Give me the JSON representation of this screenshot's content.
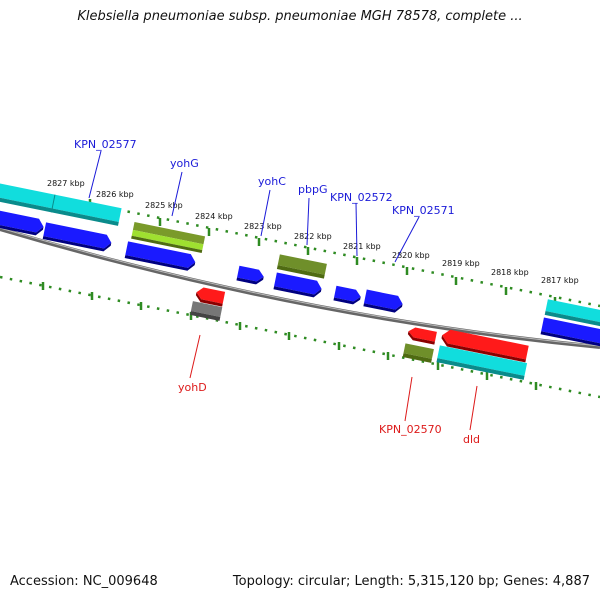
{
  "title": "Klebsiella pneumoniae subsp. pneumoniae MGH 78578, complete ...",
  "footer": {
    "accession": "Accession: NC_009648",
    "stats": "Topology: circular; Length: 5,315,120 bp; Genes: 4,887"
  },
  "colors": {
    "cds_blue": "#1a1aff",
    "cds_red": "#ff1a1a",
    "rrna_cyan": "#11dddd",
    "olive": "#7a9a2a",
    "lime": "#9fe030",
    "gray": "#777777",
    "tick_green": "#2e8b22",
    "label_blue": "#1a1ad8",
    "label_red": "#dd1a1a"
  },
  "ticks": [
    "2827 kbp",
    "2826 kbp",
    "2825 kbp",
    "2824 kbp",
    "2823 kbp",
    "2822 kbp",
    "2821 kbp",
    "2820 kbp",
    "2819 kbp",
    "2818 kbp",
    "2817 kbp"
  ],
  "forward_genes": [
    "KPN_02577",
    "yohG",
    "yohC",
    "pbpG",
    "KPN_02572",
    "KPN_02571"
  ],
  "reverse_genes": [
    "yohD",
    "KPN_02570",
    "dld"
  ]
}
